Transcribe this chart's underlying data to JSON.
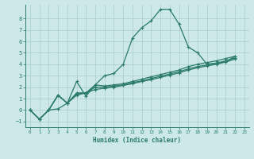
{
  "background_color": "#cce8e8",
  "grid_color": "#b0d0d0",
  "line_color": "#2a7a6a",
  "xlabel": "Humidex (Indice chaleur)",
  "xlim": [
    -0.5,
    23.5
  ],
  "ylim": [
    -1.5,
    9.2
  ],
  "yticks": [
    -1,
    0,
    1,
    2,
    3,
    4,
    5,
    6,
    7,
    8
  ],
  "xticks": [
    0,
    1,
    2,
    3,
    4,
    5,
    6,
    7,
    8,
    9,
    10,
    11,
    12,
    13,
    14,
    15,
    16,
    17,
    18,
    19,
    20,
    21,
    22,
    23
  ],
  "x_vals": [
    0,
    1,
    2,
    3,
    4,
    5,
    6,
    7,
    8,
    9,
    10,
    11,
    12,
    13,
    14,
    15,
    16,
    17,
    18,
    19,
    20,
    21,
    22
  ],
  "curve_main": [
    0,
    -0.8,
    0.0,
    0.1,
    0.6,
    2.5,
    1.2,
    2.2,
    3.0,
    3.2,
    4.0,
    6.3,
    7.2,
    7.8,
    8.8,
    8.8,
    7.5,
    5.5,
    5.0,
    4.0,
    4.1,
    4.2,
    4.7
  ],
  "curve_line1": [
    0,
    -0.8,
    0.0,
    1.3,
    0.6,
    1.5,
    1.5,
    2.2,
    2.1,
    2.2,
    2.3,
    2.5,
    2.7,
    2.9,
    3.1,
    3.3,
    3.5,
    3.8,
    4.0,
    4.15,
    4.3,
    4.5,
    4.7
  ],
  "curve_line2": [
    0,
    -0.8,
    0.0,
    1.3,
    0.6,
    1.4,
    1.5,
    2.0,
    2.0,
    2.1,
    2.2,
    2.4,
    2.55,
    2.75,
    2.95,
    3.15,
    3.35,
    3.6,
    3.8,
    3.95,
    4.1,
    4.3,
    4.55
  ],
  "curve_line3": [
    0,
    -0.8,
    0.0,
    1.3,
    0.6,
    1.3,
    1.5,
    1.8,
    1.9,
    2.0,
    2.15,
    2.3,
    2.5,
    2.65,
    2.85,
    3.05,
    3.25,
    3.5,
    3.7,
    3.85,
    4.0,
    4.2,
    4.45
  ]
}
